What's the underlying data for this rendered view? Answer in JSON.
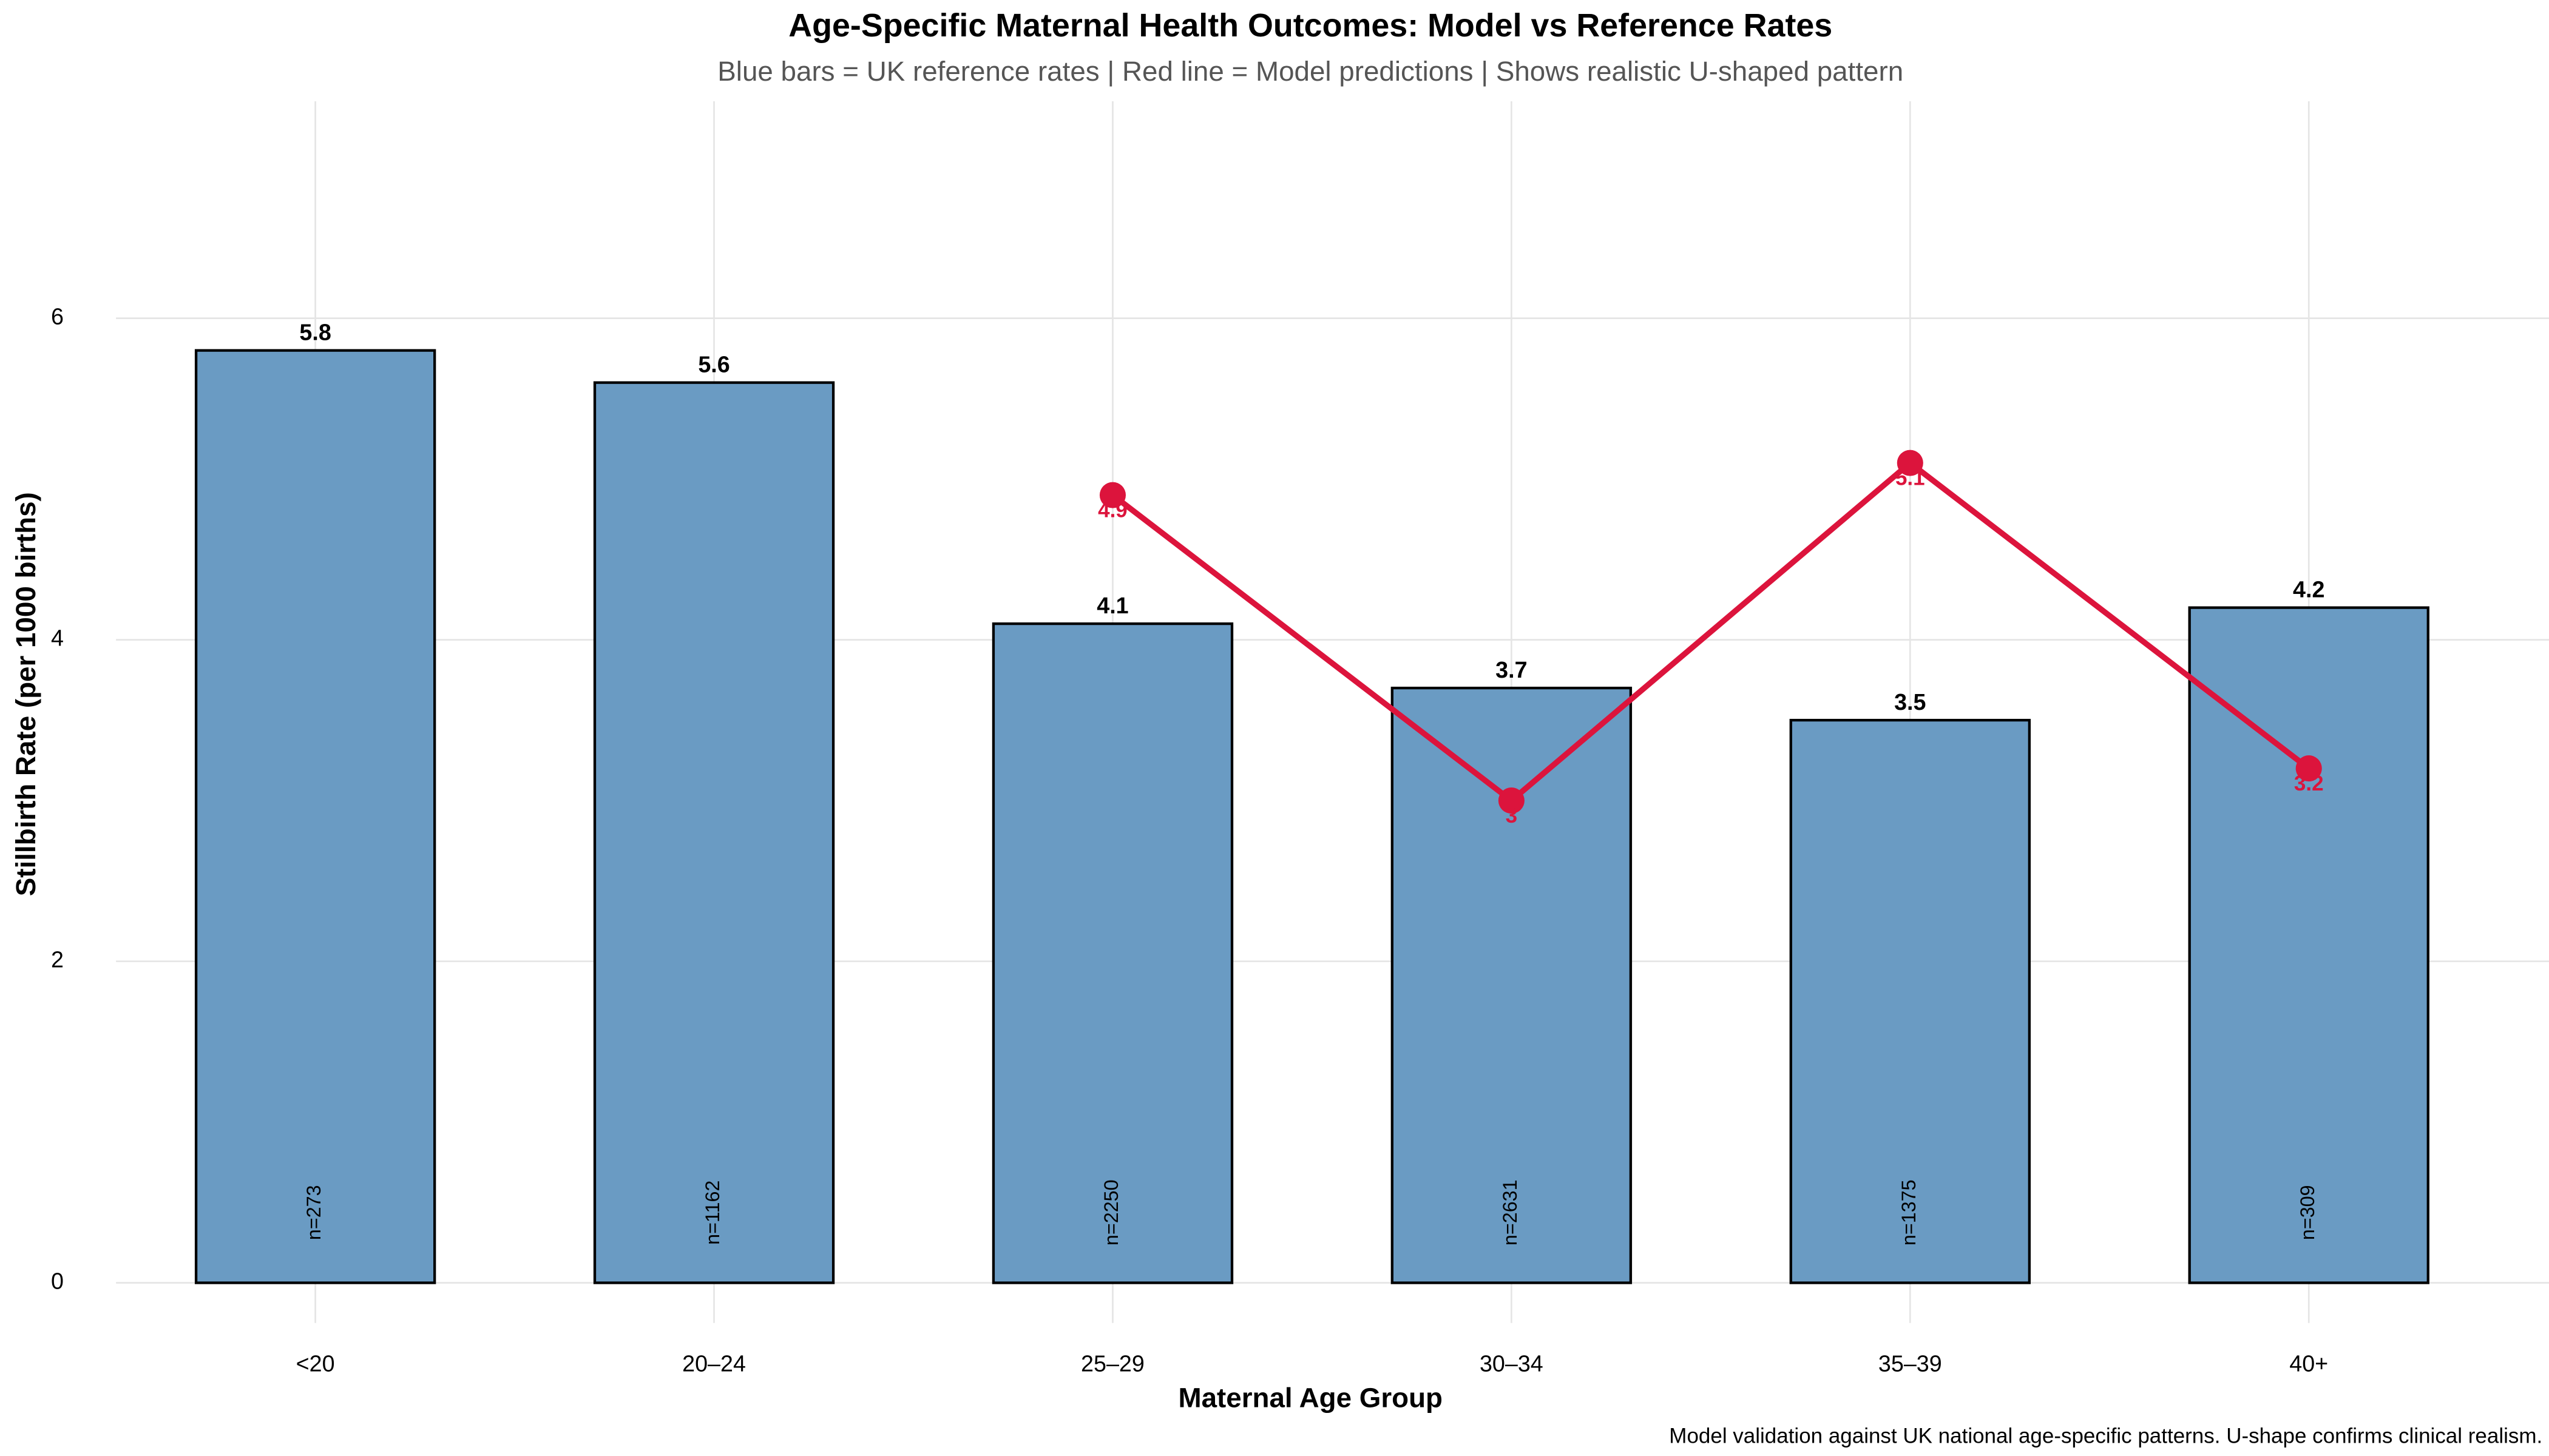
{
  "chart_data": {
    "type": "bar_line",
    "title": "Age-Specific Maternal Health Outcomes: Model vs Reference Rates",
    "subtitle": "Blue bars = UK reference rates | Red line = Model predictions | Shows realistic U-shaped pattern",
    "x_label": "Maternal Age Group",
    "y_label": "Stillbirth Rate (per 1000 births)",
    "caption": "Model validation against UK national age-specific patterns. U-shape confirms clinical realism.",
    "categories": [
      "<20",
      "20–24",
      "25–29",
      "30–34",
      "35–39",
      "40+"
    ],
    "series": [
      {
        "name": "UK reference rates",
        "color": "#6a9bc3",
        "kind": "bar",
        "values": [
          5.8,
          5.6,
          4.1,
          3.7,
          3.5,
          4.2
        ]
      },
      {
        "name": "Model predictions",
        "color": "#dc143c",
        "kind": "line",
        "values": [
          null,
          null,
          4.9,
          3,
          5.1,
          3.2
        ]
      }
    ],
    "count_labels": [
      "n=273",
      "n=1162",
      "n=2250",
      "n=2631",
      "n=1375",
      "n=309"
    ],
    "ylim": [
      -0.25,
      7.35
    ],
    "yticks": [
      0,
      2,
      4,
      6
    ],
    "grid": true
  }
}
